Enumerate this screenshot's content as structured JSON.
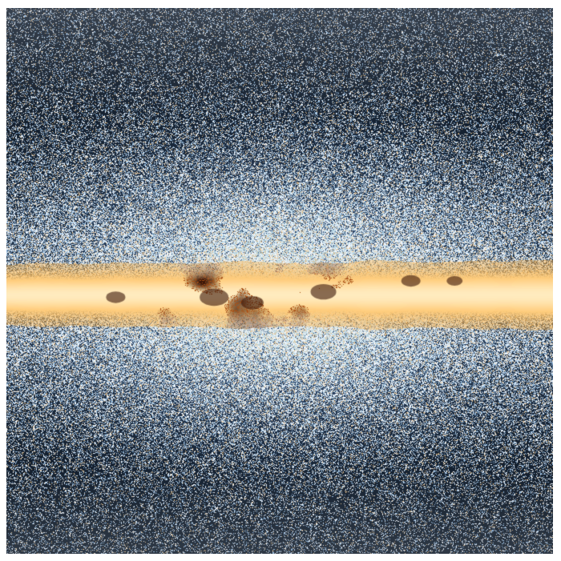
{
  "image": {
    "subject": "milky-way-galactic-plane",
    "palette": {
      "background_dark": "#2e3e52",
      "speckle_blue": "#8fb6dc",
      "speckle_white": "#f2f6fb",
      "plane_core": "#fff3c8",
      "plane_gold": "#f2b84b",
      "dust_brown": "#5a2a0e",
      "dust_dark": "#1b0c06",
      "frame_border": "#ffffff"
    },
    "features": [
      "speckled-star-field",
      "blue-bulge-glow",
      "bright-galactic-plane-band",
      "dark-dust-lanes"
    ]
  }
}
